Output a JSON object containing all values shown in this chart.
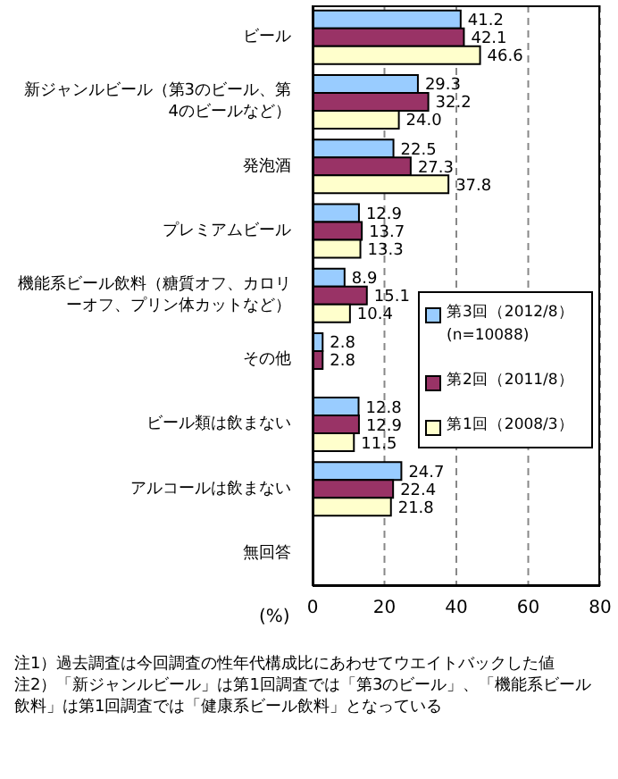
{
  "chart_data": {
    "type": "bar",
    "orientation": "horizontal",
    "xlabel": "(%)",
    "categories": [
      "ビール",
      "新ジャンルビール（第3のビール、第4のビールなど）",
      "発泡酒",
      "プレミアムビール",
      "機能系ビール飲料（糖質オフ、カロリーオフ、プリン体カットなど）",
      "その他",
      "ビール類は飲まない",
      "アルコールは飲まない",
      "無回答"
    ],
    "series": [
      {
        "name": "第3回（2012/8）\n(n=10088)",
        "color": "#99ccff",
        "values": [
          41.2,
          29.3,
          22.5,
          12.9,
          8.9,
          2.8,
          12.8,
          24.7,
          null
        ],
        "value_labels": [
          "41.2",
          "29.3",
          "22.5",
          "12.9",
          "8.9",
          "2.8",
          "12.8",
          "24.7",
          null
        ]
      },
      {
        "name": "第2回（2011/8）",
        "color": "#993366",
        "values": [
          42.1,
          32.2,
          27.3,
          13.7,
          15.1,
          2.8,
          12.9,
          22.4,
          null
        ],
        "value_labels": [
          "42.1",
          "32.2",
          "27.3",
          "13.7",
          "15.1",
          "2.8",
          "12.9",
          "22.4",
          null
        ]
      },
      {
        "name": "第1回（2008/3）",
        "color": "#ffffcc",
        "values": [
          46.6,
          24.0,
          37.8,
          13.3,
          10.4,
          null,
          11.5,
          21.8,
          null
        ],
        "value_labels": [
          "46.6",
          "24.0",
          "37.8",
          "13.3",
          "10.4",
          null,
          "11.5",
          "21.8",
          null
        ]
      }
    ],
    "xlim": [
      0,
      80
    ],
    "xticks": [
      0,
      20,
      40,
      60,
      80
    ],
    "grid": "x",
    "legend": "right",
    "annotations": [
      "注1）過去調査は今回調査の性年代構成比にあわせてウエイトバックした値",
      "注2）「新ジャンルビール」は第1回調査では「第3のビール」、「機能系ビール飲料」は第1回調査では「健康系ビール飲料」となっている"
    ]
  }
}
